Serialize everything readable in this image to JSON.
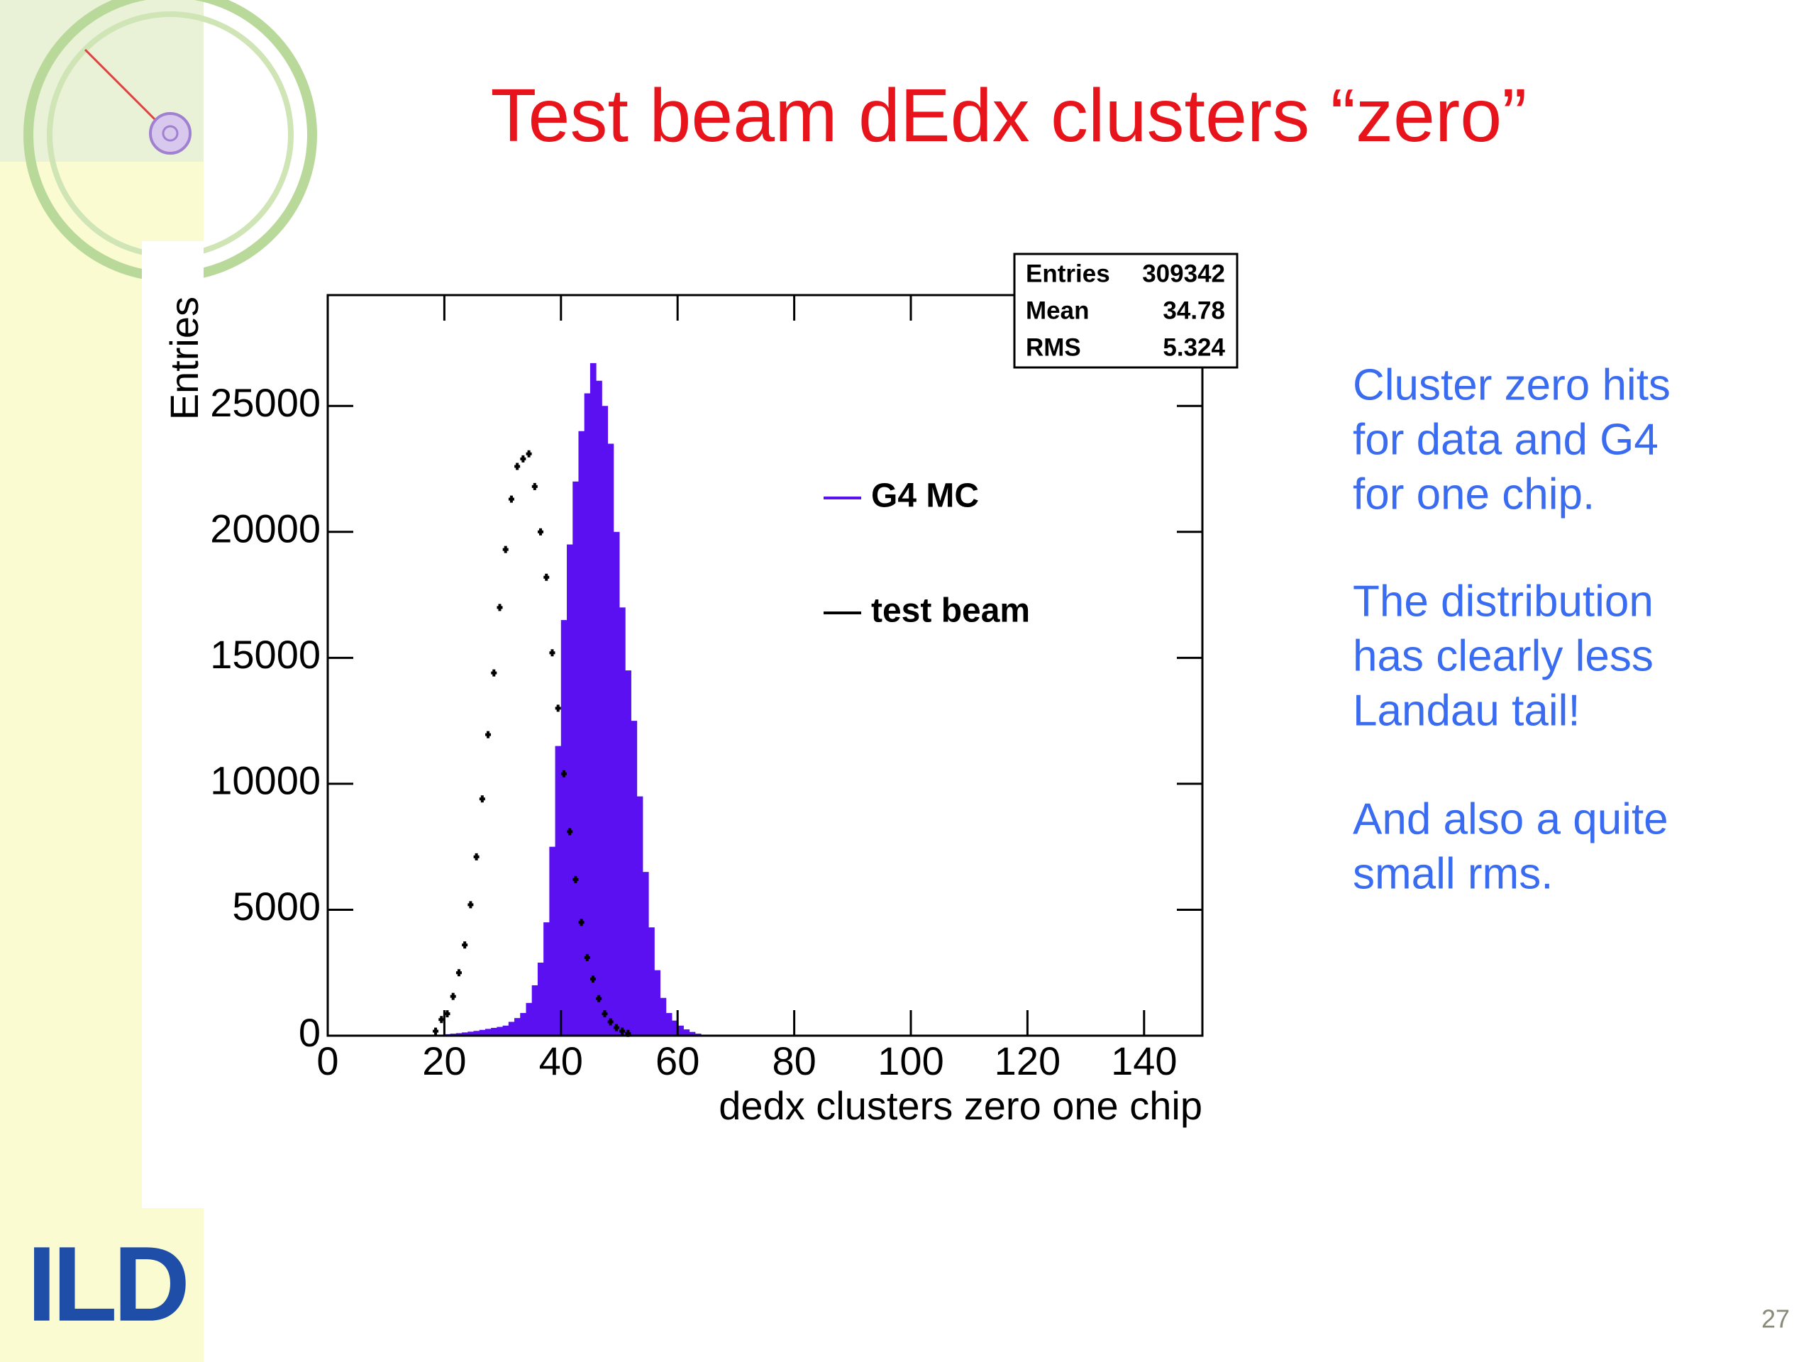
{
  "slide": {
    "title": "Test beam dEdx clusters “zero”",
    "page_number": "27",
    "logo": "ILD",
    "paragraphs": [
      [
        "Cluster zero hits",
        "for data and G4",
        "for one chip."
      ],
      [
        "The distribution",
        "has clearly less",
        "Landau tail!"
      ],
      [
        "And also a quite",
        "small rms."
      ]
    ]
  },
  "chart_data": {
    "type": "histogram",
    "xlabel": "dedx clusters zero one chip",
    "ylabel": "Entries",
    "xlim": [
      0,
      150
    ],
    "xticks": [
      0,
      20,
      40,
      60,
      80,
      100,
      120,
      140
    ],
    "ylim": [
      0,
      29400
    ],
    "yticks": [
      0,
      5000,
      10000,
      15000,
      20000,
      25000
    ],
    "stats": [
      {
        "label": "Entries",
        "value": 309342
      },
      {
        "label": "Mean",
        "value": 34.78
      },
      {
        "label": "RMS",
        "value": 5.324
      }
    ],
    "series": [
      {
        "name": "G4 MC",
        "type": "histogram",
        "color": "#5a10f0",
        "bins": [
          20,
          21,
          22,
          23,
          24,
          25,
          26,
          27,
          28,
          29,
          30,
          31,
          32,
          33,
          34,
          35,
          36,
          37,
          38,
          39,
          40,
          41,
          42,
          43,
          44,
          45,
          46,
          47,
          48,
          49,
          50,
          51,
          52,
          53,
          54,
          55,
          56,
          57,
          58,
          59,
          60,
          61,
          62,
          63,
          64,
          65
        ],
        "values": [
          60,
          80,
          100,
          130,
          160,
          190,
          230,
          270,
          310,
          350,
          400,
          550,
          700,
          900,
          1300,
          2000,
          2900,
          4500,
          7500,
          11500,
          16500,
          19500,
          22000,
          24000,
          25500,
          26700,
          26000,
          25000,
          23500,
          20000,
          17000,
          14500,
          12500,
          9500,
          6500,
          4300,
          2600,
          1500,
          900,
          600,
          400,
          250,
          150,
          80,
          40
        ]
      },
      {
        "name": "test beam",
        "type": "scatter",
        "color": "#000000",
        "x": [
          18.5,
          19.5,
          20.5,
          21.5,
          22.5,
          23.5,
          24.5,
          25.5,
          26.5,
          27.5,
          28.5,
          29.5,
          30.5,
          31.5,
          32.5,
          33.5,
          34.5,
          35.5,
          36.5,
          37.5,
          38.5,
          39.5,
          40.5,
          41.5,
          42.5,
          43.5,
          44.5,
          45.5,
          46.5,
          47.5,
          48.5,
          49.5,
          50.5,
          51.5
        ],
        "values": [
          180,
          640,
          870,
          1560,
          2500,
          3600,
          5200,
          7100,
          9400,
          11950,
          14400,
          17000,
          19300,
          21300,
          22600,
          22900,
          23100,
          21800,
          20000,
          18200,
          15200,
          13000,
          10400,
          8100,
          6200,
          4500,
          3100,
          2250,
          1470,
          870,
          550,
          320,
          180,
          90
        ]
      }
    ]
  }
}
